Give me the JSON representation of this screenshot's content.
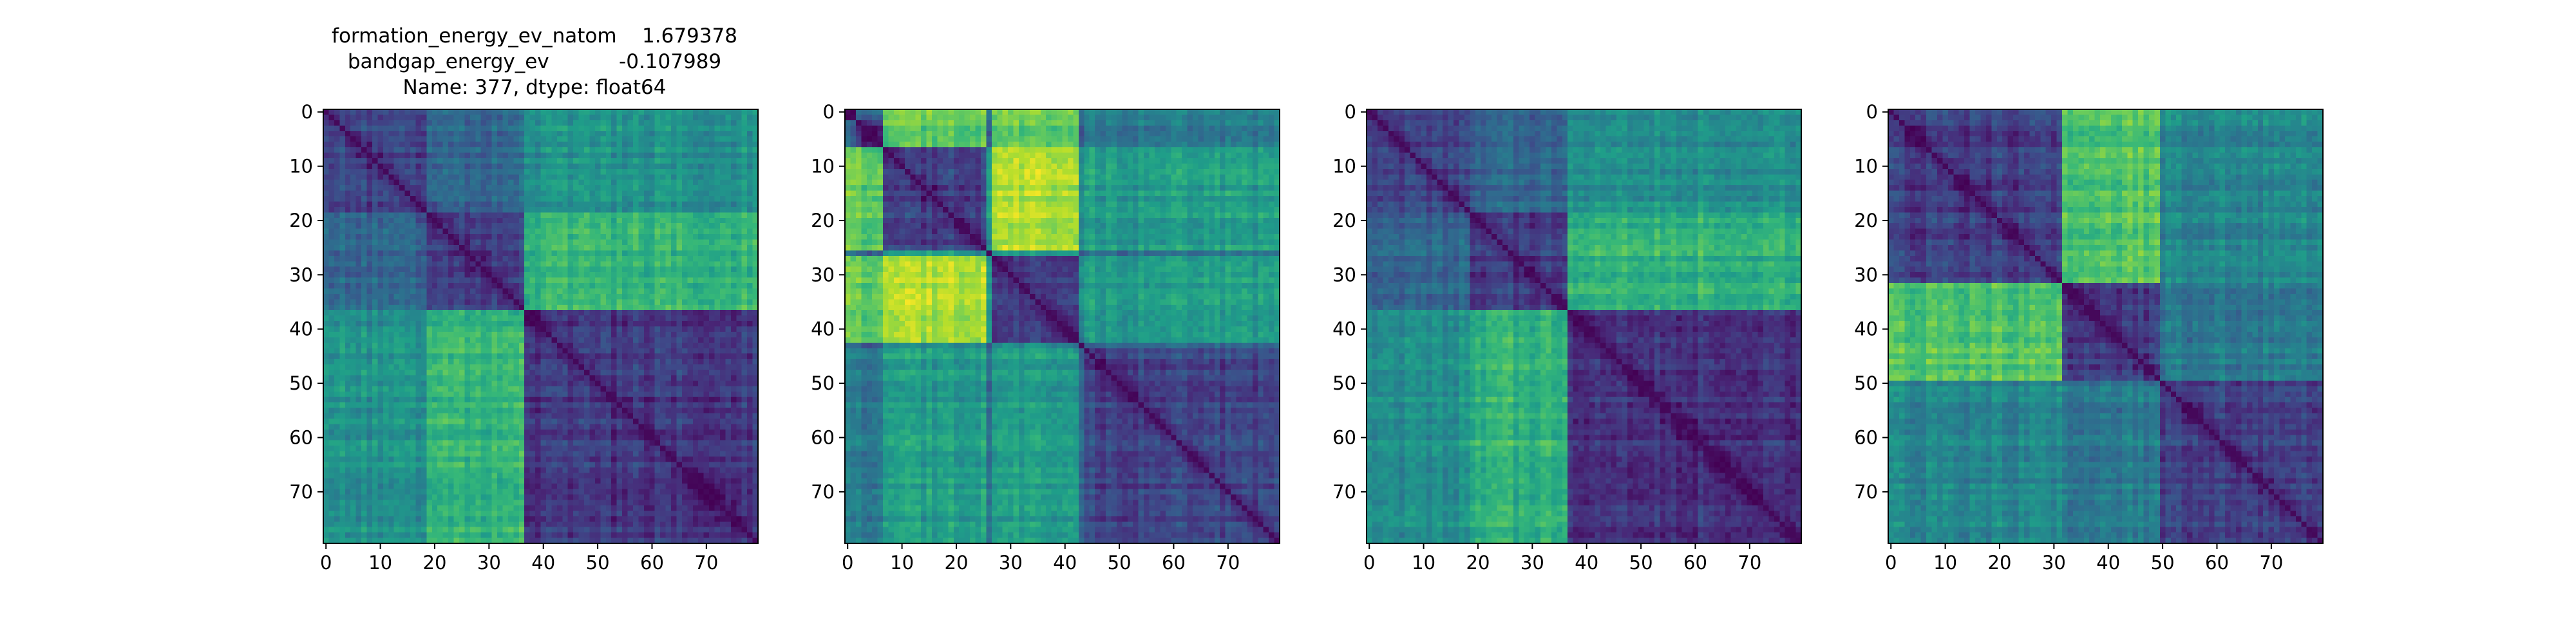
{
  "title_lines": [
    "formation_energy_ev_natom    1.679378",
    "bandgap_energy_ev           -0.107989",
    "Name: 377, dtype: float64"
  ],
  "chart_data": [
    {
      "type": "heatmap",
      "n": 80,
      "colormap": "viridis",
      "blocks": [
        0,
        19,
        37,
        80
      ],
      "block_means": [
        [
          0.2,
          0.32,
          0.5
        ],
        [
          0.32,
          0.18,
          0.65
        ],
        [
          0.5,
          0.65,
          0.16
        ]
      ],
      "xticks": [
        0,
        10,
        20,
        30,
        40,
        50,
        60,
        70
      ],
      "yticks": [
        0,
        10,
        20,
        30,
        40,
        50,
        60,
        70
      ]
    },
    {
      "type": "heatmap",
      "n": 80,
      "colormap": "viridis",
      "blocks": [
        0,
        2,
        7,
        26,
        27,
        43,
        44,
        80
      ],
      "block_means": [
        [
          0.15,
          0.35,
          0.8,
          0.4,
          0.8,
          0.4,
          0.45
        ],
        [
          0.35,
          0.15,
          0.75,
          0.3,
          0.75,
          0.3,
          0.4
        ],
        [
          0.8,
          0.75,
          0.18,
          0.55,
          0.88,
          0.5,
          0.55
        ],
        [
          0.4,
          0.3,
          0.55,
          0.15,
          0.55,
          0.25,
          0.35
        ],
        [
          0.8,
          0.75,
          0.88,
          0.55,
          0.18,
          0.5,
          0.55
        ],
        [
          0.4,
          0.3,
          0.5,
          0.25,
          0.5,
          0.15,
          0.35
        ],
        [
          0.45,
          0.4,
          0.55,
          0.35,
          0.55,
          0.35,
          0.2
        ]
      ],
      "xticks": [
        0,
        10,
        20,
        30,
        40,
        50,
        60,
        70
      ],
      "yticks": [
        0,
        10,
        20,
        30,
        40,
        50,
        60,
        70
      ]
    },
    {
      "type": "heatmap",
      "n": 80,
      "colormap": "viridis",
      "blocks": [
        0,
        19,
        37,
        80
      ],
      "block_means": [
        [
          0.2,
          0.32,
          0.5
        ],
        [
          0.32,
          0.18,
          0.65
        ],
        [
          0.5,
          0.65,
          0.16
        ]
      ],
      "xticks": [
        0,
        10,
        20,
        30,
        40,
        50,
        60,
        70
      ],
      "yticks": [
        0,
        10,
        20,
        30,
        40,
        50,
        60,
        70
      ]
    },
    {
      "type": "heatmap",
      "n": 80,
      "colormap": "viridis",
      "blocks": [
        0,
        32,
        50,
        80
      ],
      "block_means": [
        [
          0.18,
          0.72,
          0.45
        ],
        [
          0.72,
          0.18,
          0.4
        ],
        [
          0.45,
          0.4,
          0.18
        ]
      ],
      "xticks": [
        0,
        10,
        20,
        30,
        40,
        50,
        60,
        70
      ],
      "yticks": [
        0,
        10,
        20,
        30,
        40,
        50,
        60,
        70
      ]
    }
  ]
}
